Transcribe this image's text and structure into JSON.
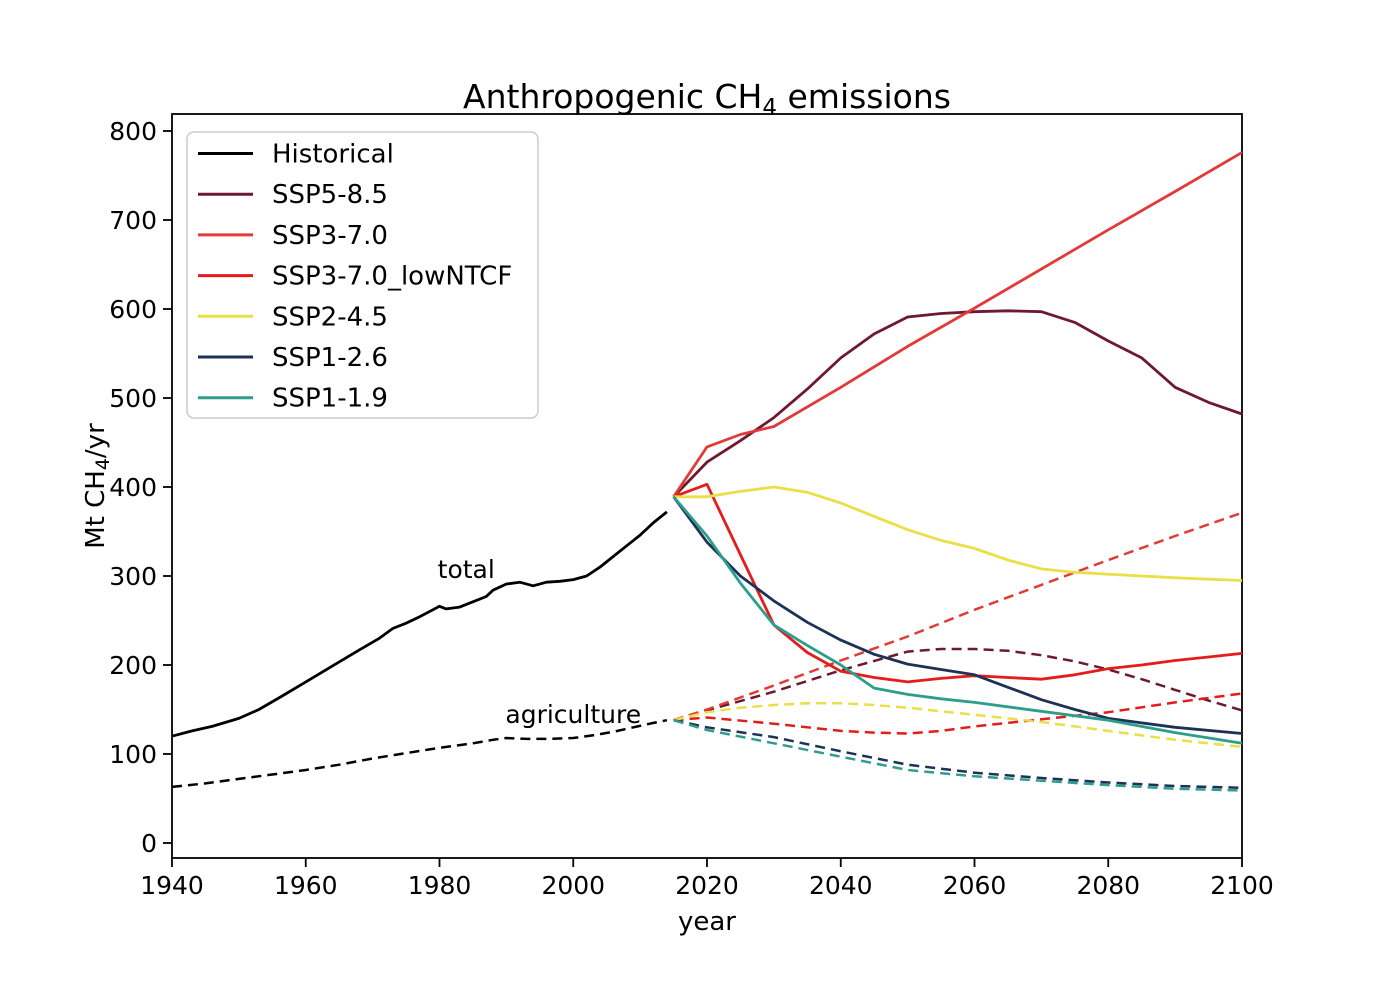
{
  "window": {
    "background": "#ffffff"
  },
  "chart_data": {
    "type": "line",
    "title": {
      "prefix": "Anthropogenic CH",
      "sub": "4",
      "suffix": " emissions"
    },
    "xlabel": "year",
    "ylabel": {
      "prefix": "Mt CH",
      "sub": "4",
      "suffix": "/yr"
    },
    "grid": false,
    "x_axis": {
      "range": [
        1940,
        2100
      ],
      "ticks": [
        1940,
        1960,
        1980,
        2000,
        2020,
        2040,
        2060,
        2080,
        2100
      ]
    },
    "y_axis": {
      "range": [
        -17,
        818
      ],
      "ticks": [
        0,
        100,
        200,
        300,
        400,
        500,
        600,
        700,
        800
      ]
    },
    "legend": {
      "position": "upper left",
      "border_color": "#cccccc",
      "background": "#ffffff",
      "entries": [
        {
          "label": "Historical",
          "color": "#000000"
        },
        {
          "label": "SSP5-8.5",
          "color": "#6d1a31"
        },
        {
          "label": "SSP3-7.0",
          "color": "#e03b38"
        },
        {
          "label": "SSP3-7.0_lowNTCF",
          "color": "#e31d1c"
        },
        {
          "label": "SSP2-4.5",
          "color": "#e9e049"
        },
        {
          "label": "SSP1-2.6",
          "color": "#1e3256"
        },
        {
          "label": "SSP1-1.9",
          "color": "#2d9e8a"
        }
      ]
    },
    "annotations": [
      {
        "label": "total",
        "year": 1984,
        "value": 298
      },
      {
        "label": "agriculture",
        "year": 2000,
        "value": 135
      }
    ],
    "line_styles": {
      "total": "solid",
      "agriculture": "dashed"
    },
    "series": [
      {
        "name": "Historical",
        "group": "agriculture",
        "color": "#000000",
        "dashed": true,
        "points": [
          [
            1940,
            63
          ],
          [
            1945,
            67
          ],
          [
            1950,
            72
          ],
          [
            1955,
            77
          ],
          [
            1960,
            82
          ],
          [
            1965,
            88
          ],
          [
            1970,
            95
          ],
          [
            1975,
            101
          ],
          [
            1980,
            107
          ],
          [
            1985,
            112
          ],
          [
            1988,
            116
          ],
          [
            1990,
            118
          ],
          [
            1993,
            117
          ],
          [
            1996,
            117
          ],
          [
            2000,
            118
          ],
          [
            2003,
            121
          ],
          [
            2006,
            125
          ],
          [
            2009,
            130
          ],
          [
            2012,
            135
          ],
          [
            2014,
            138
          ]
        ]
      },
      {
        "name": "SSP5-8.5",
        "group": "agriculture",
        "color": "#6d1a31",
        "dashed": true,
        "points": [
          [
            2015,
            138
          ],
          [
            2020,
            149
          ],
          [
            2030,
            170
          ],
          [
            2040,
            194
          ],
          [
            2050,
            215
          ],
          [
            2055,
            218
          ],
          [
            2060,
            218
          ],
          [
            2065,
            216
          ],
          [
            2070,
            211
          ],
          [
            2075,
            204
          ],
          [
            2080,
            195
          ],
          [
            2085,
            184
          ],
          [
            2090,
            172
          ],
          [
            2095,
            160
          ],
          [
            2100,
            149
          ]
        ]
      },
      {
        "name": "SSP3-7.0",
        "group": "agriculture",
        "color": "#e03b38",
        "dashed": true,
        "points": [
          [
            2015,
            138
          ],
          [
            2020,
            150
          ],
          [
            2030,
            177
          ],
          [
            2040,
            205
          ],
          [
            2050,
            232
          ],
          [
            2060,
            262
          ],
          [
            2070,
            290
          ],
          [
            2080,
            318
          ],
          [
            2090,
            345
          ],
          [
            2100,
            371
          ]
        ]
      },
      {
        "name": "SSP3-7.0_lowNTCF",
        "group": "agriculture",
        "color": "#e31d1c",
        "dashed": true,
        "points": [
          [
            2015,
            138
          ],
          [
            2020,
            141
          ],
          [
            2030,
            134
          ],
          [
            2040,
            126
          ],
          [
            2045,
            124
          ],
          [
            2050,
            123
          ],
          [
            2055,
            126
          ],
          [
            2060,
            131
          ],
          [
            2070,
            139
          ],
          [
            2080,
            147
          ],
          [
            2090,
            158
          ],
          [
            2100,
            168
          ]
        ]
      },
      {
        "name": "SSP2-4.5",
        "group": "agriculture",
        "color": "#e9e049",
        "dashed": true,
        "points": [
          [
            2015,
            138
          ],
          [
            2020,
            147
          ],
          [
            2025,
            152
          ],
          [
            2030,
            155
          ],
          [
            2035,
            157
          ],
          [
            2040,
            157
          ],
          [
            2045,
            155
          ],
          [
            2050,
            152
          ],
          [
            2055,
            148
          ],
          [
            2060,
            144
          ],
          [
            2070,
            136
          ],
          [
            2080,
            126
          ],
          [
            2090,
            116
          ],
          [
            2100,
            108
          ]
        ]
      },
      {
        "name": "SSP1-2.6",
        "group": "agriculture",
        "color": "#1e3256",
        "dashed": true,
        "points": [
          [
            2015,
            138
          ],
          [
            2020,
            130
          ],
          [
            2030,
            119
          ],
          [
            2040,
            103
          ],
          [
            2050,
            88
          ],
          [
            2060,
            79
          ],
          [
            2070,
            73
          ],
          [
            2080,
            68
          ],
          [
            2090,
            64
          ],
          [
            2100,
            62
          ]
        ]
      },
      {
        "name": "SSP1-1.9",
        "group": "agriculture",
        "color": "#2d9e8a",
        "dashed": true,
        "points": [
          [
            2015,
            138
          ],
          [
            2020,
            127
          ],
          [
            2030,
            112
          ],
          [
            2040,
            97
          ],
          [
            2050,
            82
          ],
          [
            2060,
            75
          ],
          [
            2070,
            70
          ],
          [
            2080,
            65
          ],
          [
            2090,
            61
          ],
          [
            2100,
            59
          ]
        ]
      },
      {
        "name": "Historical",
        "group": "total",
        "color": "#000000",
        "dashed": false,
        "points": [
          [
            1940,
            120
          ],
          [
            1943,
            126
          ],
          [
            1946,
            131
          ],
          [
            1950,
            140
          ],
          [
            1953,
            150
          ],
          [
            1956,
            163
          ],
          [
            1960,
            181
          ],
          [
            1964,
            199
          ],
          [
            1968,
            217
          ],
          [
            1971,
            230
          ],
          [
            1973,
            241
          ],
          [
            1975,
            247
          ],
          [
            1977,
            254
          ],
          [
            1979,
            262
          ],
          [
            1980,
            266
          ],
          [
            1981,
            263
          ],
          [
            1983,
            265
          ],
          [
            1985,
            271
          ],
          [
            1987,
            277
          ],
          [
            1988,
            284
          ],
          [
            1990,
            291
          ],
          [
            1992,
            293
          ],
          [
            1994,
            289
          ],
          [
            1996,
            293
          ],
          [
            1998,
            294
          ],
          [
            2000,
            296
          ],
          [
            2002,
            300
          ],
          [
            2004,
            310
          ],
          [
            2006,
            322
          ],
          [
            2008,
            334
          ],
          [
            2010,
            346
          ],
          [
            2012,
            360
          ],
          [
            2014,
            372
          ]
        ]
      },
      {
        "name": "SSP5-8.5",
        "group": "total",
        "color": "#6d1a31",
        "dashed": false,
        "points": [
          [
            2015,
            389
          ],
          [
            2020,
            428
          ],
          [
            2025,
            452
          ],
          [
            2030,
            478
          ],
          [
            2035,
            510
          ],
          [
            2040,
            545
          ],
          [
            2045,
            572
          ],
          [
            2050,
            591
          ],
          [
            2055,
            595
          ],
          [
            2060,
            597
          ],
          [
            2065,
            598
          ],
          [
            2070,
            597
          ],
          [
            2075,
            585
          ],
          [
            2080,
            564
          ],
          [
            2085,
            545
          ],
          [
            2090,
            512
          ],
          [
            2095,
            495
          ],
          [
            2100,
            482
          ]
        ]
      },
      {
        "name": "SSP3-7.0",
        "group": "total",
        "color": "#e03b38",
        "dashed": false,
        "points": [
          [
            2015,
            389
          ],
          [
            2020,
            445
          ],
          [
            2025,
            459
          ],
          [
            2030,
            468
          ],
          [
            2040,
            512
          ],
          [
            2050,
            558
          ],
          [
            2060,
            601
          ],
          [
            2070,
            645
          ],
          [
            2080,
            689
          ],
          [
            2090,
            732
          ],
          [
            2100,
            776
          ]
        ]
      },
      {
        "name": "SSP3-7.0_lowNTCF",
        "group": "total",
        "color": "#e31d1c",
        "dashed": false,
        "points": [
          [
            2015,
            389
          ],
          [
            2020,
            403
          ],
          [
            2025,
            324
          ],
          [
            2030,
            245
          ],
          [
            2035,
            214
          ],
          [
            2040,
            193
          ],
          [
            2045,
            186
          ],
          [
            2050,
            181
          ],
          [
            2055,
            185
          ],
          [
            2060,
            188
          ],
          [
            2065,
            186
          ],
          [
            2070,
            184
          ],
          [
            2075,
            189
          ],
          [
            2080,
            196
          ],
          [
            2085,
            200
          ],
          [
            2090,
            205
          ],
          [
            2095,
            209
          ],
          [
            2100,
            213
          ]
        ]
      },
      {
        "name": "SSP2-4.5",
        "group": "total",
        "color": "#e9e049",
        "dashed": false,
        "points": [
          [
            2015,
            389
          ],
          [
            2020,
            389
          ],
          [
            2025,
            395
          ],
          [
            2030,
            400
          ],
          [
            2035,
            394
          ],
          [
            2040,
            382
          ],
          [
            2045,
            367
          ],
          [
            2050,
            352
          ],
          [
            2055,
            340
          ],
          [
            2060,
            331
          ],
          [
            2065,
            318
          ],
          [
            2070,
            308
          ],
          [
            2075,
            304
          ],
          [
            2080,
            302
          ],
          [
            2085,
            300
          ],
          [
            2090,
            298
          ],
          [
            2100,
            295
          ]
        ]
      },
      {
        "name": "SSP1-2.6",
        "group": "total",
        "color": "#1e3256",
        "dashed": false,
        "points": [
          [
            2015,
            389
          ],
          [
            2020,
            338
          ],
          [
            2025,
            300
          ],
          [
            2030,
            272
          ],
          [
            2035,
            248
          ],
          [
            2040,
            228
          ],
          [
            2045,
            212
          ],
          [
            2050,
            201
          ],
          [
            2055,
            195
          ],
          [
            2060,
            189
          ],
          [
            2065,
            175
          ],
          [
            2070,
            161
          ],
          [
            2075,
            150
          ],
          [
            2080,
            140
          ],
          [
            2085,
            135
          ],
          [
            2090,
            130
          ],
          [
            2100,
            123
          ]
        ]
      },
      {
        "name": "SSP1-1.9",
        "group": "total",
        "color": "#2d9e8a",
        "dashed": false,
        "points": [
          [
            2015,
            389
          ],
          [
            2020,
            345
          ],
          [
            2025,
            292
          ],
          [
            2030,
            245
          ],
          [
            2035,
            222
          ],
          [
            2040,
            200
          ],
          [
            2045,
            174
          ],
          [
            2050,
            167
          ],
          [
            2055,
            162
          ],
          [
            2060,
            158
          ],
          [
            2070,
            148
          ],
          [
            2080,
            138
          ],
          [
            2090,
            124
          ],
          [
            2100,
            112
          ]
        ]
      }
    ]
  }
}
